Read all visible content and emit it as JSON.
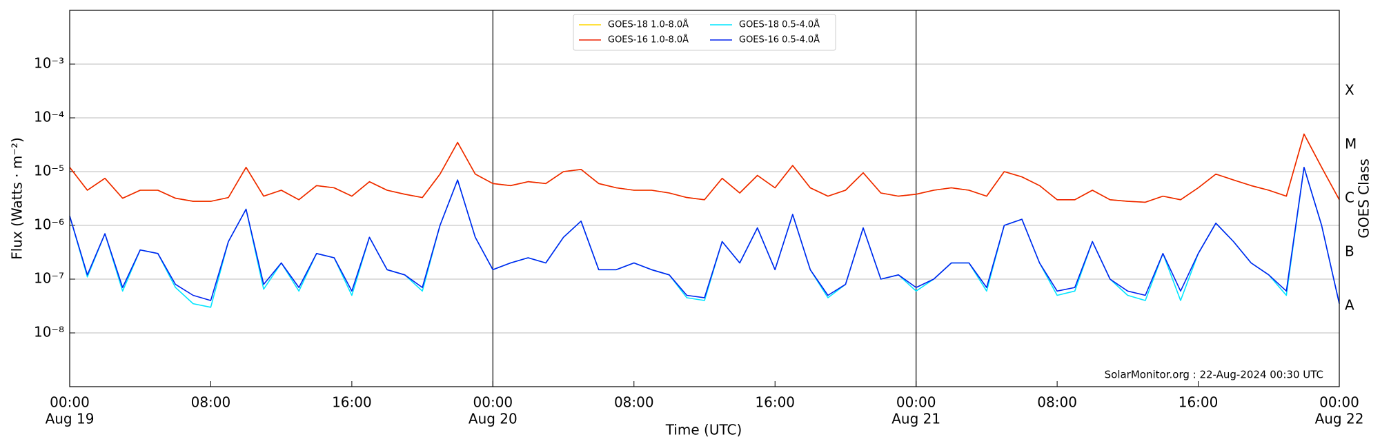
{
  "chart_data": {
    "type": "line",
    "x": [
      "Aug 19 00:00",
      "Aug 19 01:00",
      "Aug 19 02:00",
      "Aug 19 03:00",
      "Aug 19 04:00",
      "Aug 19 05:00",
      "Aug 19 06:00",
      "Aug 19 07:00",
      "Aug 19 08:00",
      "Aug 19 09:00",
      "Aug 19 10:00",
      "Aug 19 11:00",
      "Aug 19 12:00",
      "Aug 19 13:00",
      "Aug 19 14:00",
      "Aug 19 15:00",
      "Aug 19 16:00",
      "Aug 19 17:00",
      "Aug 19 18:00",
      "Aug 19 19:00",
      "Aug 19 20:00",
      "Aug 19 21:00",
      "Aug 19 22:00",
      "Aug 19 23:00",
      "Aug 20 00:00",
      "Aug 20 01:00",
      "Aug 20 02:00",
      "Aug 20 03:00",
      "Aug 20 04:00",
      "Aug 20 05:00",
      "Aug 20 06:00",
      "Aug 20 07:00",
      "Aug 20 08:00",
      "Aug 20 09:00",
      "Aug 20 10:00",
      "Aug 20 11:00",
      "Aug 20 12:00",
      "Aug 20 13:00",
      "Aug 20 14:00",
      "Aug 20 15:00",
      "Aug 20 16:00",
      "Aug 20 17:00",
      "Aug 20 18:00",
      "Aug 20 19:00",
      "Aug 20 20:00",
      "Aug 20 21:00",
      "Aug 20 22:00",
      "Aug 20 23:00",
      "Aug 21 00:00",
      "Aug 21 01:00",
      "Aug 21 02:00",
      "Aug 21 03:00",
      "Aug 21 04:00",
      "Aug 21 05:00",
      "Aug 21 06:00",
      "Aug 21 07:00",
      "Aug 21 08:00",
      "Aug 21 09:00",
      "Aug 21 10:00",
      "Aug 21 11:00",
      "Aug 21 12:00",
      "Aug 21 13:00",
      "Aug 21 14:00",
      "Aug 21 15:00",
      "Aug 21 16:00",
      "Aug 21 17:00",
      "Aug 21 18:00",
      "Aug 21 19:00",
      "Aug 21 20:00",
      "Aug 21 21:00",
      "Aug 21 22:00",
      "Aug 21 23:00",
      "Aug 22 00:00"
    ],
    "series": [
      {
        "name": "GOES-18 1.0-8.0Å",
        "color": "#ffd700",
        "values": [
          1.2e-05,
          4.5e-06,
          7.5e-06,
          3.2e-06,
          4.5e-06,
          4.5e-06,
          3.2e-06,
          2.8e-06,
          2.8e-06,
          3.3e-06,
          1.2e-05,
          3.5e-06,
          4.5e-06,
          3e-06,
          5.5e-06,
          5e-06,
          3.5e-06,
          6.5e-06,
          4.5e-06,
          3.8e-06,
          3.3e-06,
          9e-06,
          3.5e-05,
          9e-06,
          6e-06,
          5.5e-06,
          6.5e-06,
          6e-06,
          1e-05,
          1.1e-05,
          6e-06,
          5e-06,
          4.5e-06,
          4.5e-06,
          4e-06,
          3.3e-06,
          3e-06,
          7.5e-06,
          4e-06,
          8.5e-06,
          5e-06,
          1.3e-05,
          5e-06,
          3.5e-06,
          4.5e-06,
          9.5e-06,
          4e-06,
          3.5e-06,
          3.8e-06,
          4.5e-06,
          5e-06,
          4.5e-06,
          3.5e-06,
          1e-05,
          8e-06,
          5.5e-06,
          3e-06,
          3e-06,
          4.5e-06,
          3e-06,
          2.8e-06,
          2.7e-06,
          3.5e-06,
          3e-06,
          5e-06,
          9e-06,
          7e-06,
          5.5e-06,
          4.5e-06,
          3.5e-06,
          5e-05,
          1.2e-05,
          3e-06
        ]
      },
      {
        "name": "GOES-16 1.0-8.0Å",
        "color": "#ee2200",
        "values": [
          1.2e-05,
          4.5e-06,
          7.5e-06,
          3.2e-06,
          4.5e-06,
          4.5e-06,
          3.2e-06,
          2.8e-06,
          2.8e-06,
          3.3e-06,
          1.2e-05,
          3.5e-06,
          4.5e-06,
          3e-06,
          5.5e-06,
          5e-06,
          3.5e-06,
          6.5e-06,
          4.5e-06,
          3.8e-06,
          3.3e-06,
          9e-06,
          3.5e-05,
          9e-06,
          6e-06,
          5.5e-06,
          6.5e-06,
          6e-06,
          1e-05,
          1.1e-05,
          6e-06,
          5e-06,
          4.5e-06,
          4.5e-06,
          4e-06,
          3.3e-06,
          3e-06,
          7.5e-06,
          4e-06,
          8.5e-06,
          5e-06,
          1.3e-05,
          5e-06,
          3.5e-06,
          4.5e-06,
          9.5e-06,
          4e-06,
          3.5e-06,
          3.8e-06,
          4.5e-06,
          5e-06,
          4.5e-06,
          3.5e-06,
          1e-05,
          8e-06,
          5.5e-06,
          3e-06,
          3e-06,
          4.5e-06,
          3e-06,
          2.8e-06,
          2.7e-06,
          3.5e-06,
          3e-06,
          5e-06,
          9e-06,
          7e-06,
          5.5e-06,
          4.5e-06,
          3.5e-06,
          5e-05,
          1.2e-05,
          3e-06
        ]
      },
      {
        "name": "GOES-18 0.5-4.0Å",
        "color": "#00e5ff",
        "values": [
          1.5e-06,
          1.1e-07,
          7e-07,
          6e-08,
          3.5e-07,
          3e-07,
          7e-08,
          3.5e-08,
          3e-08,
          5e-07,
          2e-06,
          6.5e-08,
          2e-07,
          6e-08,
          3e-07,
          2.5e-07,
          5e-08,
          6e-07,
          1.5e-07,
          1.2e-07,
          6e-08,
          1e-06,
          7e-06,
          6e-07,
          1.5e-07,
          2e-07,
          2.5e-07,
          2e-07,
          6e-07,
          1.2e-06,
          1.5e-07,
          1.5e-07,
          2e-07,
          1.5e-07,
          1.2e-07,
          4.5e-08,
          4e-08,
          5e-07,
          2e-07,
          9e-07,
          1.5e-07,
          1.6e-06,
          1.5e-07,
          4.5e-08,
          8e-08,
          9e-07,
          1e-07,
          1.2e-07,
          6e-08,
          1e-07,
          2e-07,
          2e-07,
          6e-08,
          1e-06,
          1.3e-06,
          2e-07,
          5e-08,
          6e-08,
          5e-07,
          1e-07,
          5e-08,
          4e-08,
          3e-07,
          4e-08,
          3e-07,
          1.1e-06,
          5e-07,
          2e-07,
          1.2e-07,
          5e-08,
          1.2e-05,
          1e-06,
          3.5e-08
        ]
      },
      {
        "name": "GOES-16 0.5-4.0Å",
        "color": "#0022ee",
        "values": [
          1.5e-06,
          1.2e-07,
          7e-07,
          7e-08,
          3.5e-07,
          3e-07,
          8e-08,
          5e-08,
          4e-08,
          5e-07,
          2e-06,
          8e-08,
          2e-07,
          7e-08,
          3e-07,
          2.5e-07,
          6e-08,
          6e-07,
          1.5e-07,
          1.2e-07,
          7e-08,
          1e-06,
          7e-06,
          6e-07,
          1.5e-07,
          2e-07,
          2.5e-07,
          2e-07,
          6e-07,
          1.2e-06,
          1.5e-07,
          1.5e-07,
          2e-07,
          1.5e-07,
          1.2e-07,
          5e-08,
          4.5e-08,
          5e-07,
          2e-07,
          9e-07,
          1.5e-07,
          1.6e-06,
          1.5e-07,
          5e-08,
          8e-08,
          9e-07,
          1e-07,
          1.2e-07,
          7e-08,
          1e-07,
          2e-07,
          2e-07,
          7e-08,
          1e-06,
          1.3e-06,
          2e-07,
          6e-08,
          7e-08,
          5e-07,
          1e-07,
          6e-08,
          5e-08,
          3e-07,
          6e-08,
          3e-07,
          1.1e-06,
          5e-07,
          2e-07,
          1.2e-07,
          6e-08,
          1.2e-05,
          1e-06,
          3.5e-08
        ]
      }
    ],
    "xlim": [
      "Aug 19 00:00",
      "Aug 22 00:00"
    ],
    "xticks": [
      {
        "value": "Aug 19 00:00",
        "label": "00:00",
        "date": "Aug 19"
      },
      {
        "value": "Aug 19 08:00",
        "label": "08:00"
      },
      {
        "value": "Aug 19 16:00",
        "label": "16:00"
      },
      {
        "value": "Aug 20 00:00",
        "label": "00:00",
        "date": "Aug 20"
      },
      {
        "value": "Aug 20 08:00",
        "label": "08:00"
      },
      {
        "value": "Aug 20 16:00",
        "label": "16:00"
      },
      {
        "value": "Aug 21 00:00",
        "label": "00:00",
        "date": "Aug 21"
      },
      {
        "value": "Aug 21 08:00",
        "label": "08:00"
      },
      {
        "value": "Aug 21 16:00",
        "label": "16:00"
      },
      {
        "value": "Aug 22 00:00",
        "label": "00:00",
        "date": "Aug 22"
      }
    ],
    "ylim": [
      1e-09,
      0.01
    ],
    "yscale": "log",
    "yticks": [
      {
        "value": 1e-08,
        "label": "10⁻⁸"
      },
      {
        "value": 1e-07,
        "label": "10⁻⁷"
      },
      {
        "value": 1e-06,
        "label": "10⁻⁶"
      },
      {
        "value": 1e-05,
        "label": "10⁻⁵"
      },
      {
        "value": 0.0001,
        "label": "10⁻⁴"
      },
      {
        "value": 0.001,
        "label": "10⁻³"
      }
    ],
    "y2lim": [
      1e-09,
      0.01
    ],
    "y2ticks": [
      {
        "value": 1e-08,
        "label": "A"
      },
      {
        "value": 1e-07,
        "label": "B"
      },
      {
        "value": 1e-06,
        "label": "C"
      },
      {
        "value": 1e-05,
        "label": "M"
      },
      {
        "value": 0.0001,
        "label": "X"
      }
    ],
    "grid": true,
    "day_separators": true,
    "legend": "upper center",
    "x_label": "Time (UTC)",
    "y_label": "Flux (Watts · m⁻²)",
    "y2_label": "GOES Class",
    "annotation": "SolarMonitor.org : 22-Aug-2024 00:30 UTC"
  }
}
